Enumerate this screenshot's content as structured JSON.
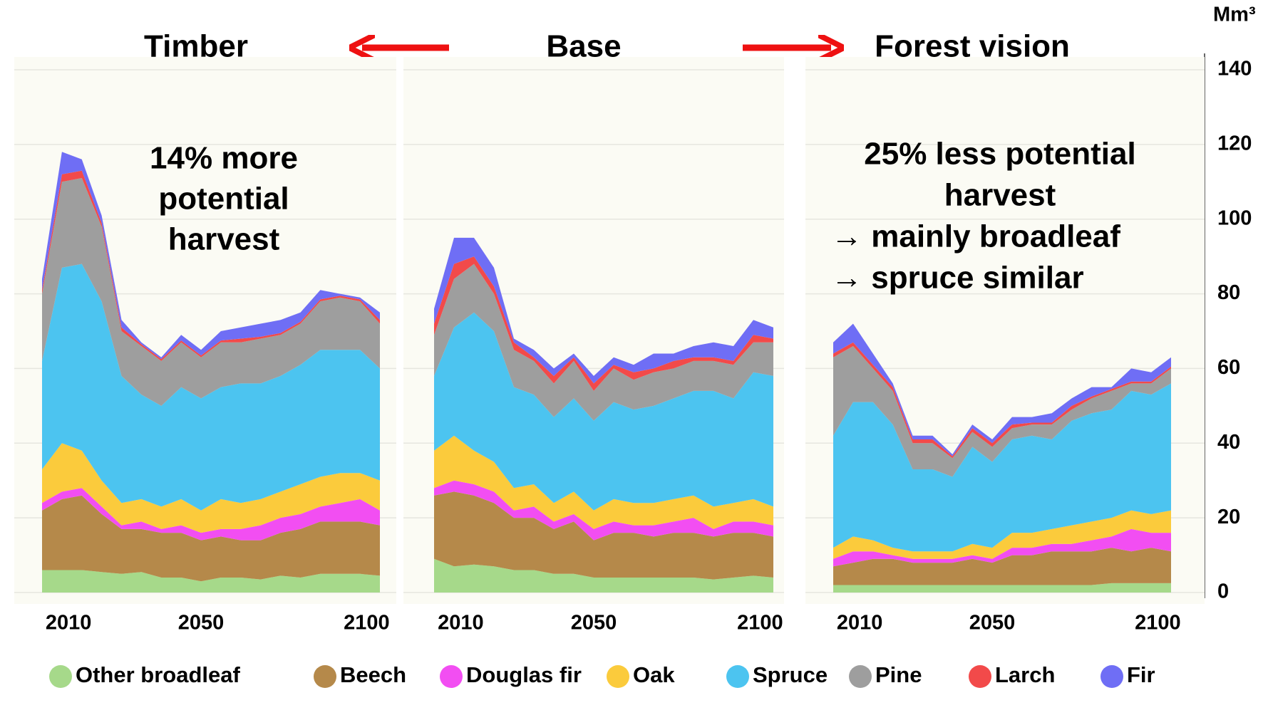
{
  "chart_data": [
    {
      "type": "stacked_area",
      "title": "Timber",
      "annotation": [
        "14% more",
        "potential",
        "harvest"
      ],
      "x": [
        2002,
        2008,
        2014,
        2020,
        2026,
        2032,
        2038,
        2044,
        2050,
        2056,
        2062,
        2068,
        2074,
        2080,
        2086,
        2092,
        2098,
        2104
      ],
      "xlim": [
        2002,
        2104
      ],
      "xticks": [
        2010,
        2050,
        2100
      ],
      "ylim": [
        0,
        140
      ],
      "yticks": [
        0,
        20,
        40,
        60,
        80,
        100,
        120,
        140
      ],
      "grid": true,
      "series": [
        {
          "name": "Other broadleaf",
          "color": "#a6d98a",
          "values": [
            6,
            6,
            6,
            5.5,
            5,
            5.5,
            4,
            4,
            3,
            4,
            4,
            3.5,
            4.5,
            4,
            5,
            5,
            5,
            4.5
          ]
        },
        {
          "name": "Beech",
          "color": "#b5894a",
          "values": [
            16,
            19,
            20,
            15.5,
            12,
            11.5,
            12,
            12,
            11,
            11,
            10,
            10.5,
            11.5,
            13,
            14,
            14,
            14,
            13.5
          ]
        },
        {
          "name": "Douglas fir",
          "color": "#f24ef2",
          "values": [
            2,
            2,
            2,
            2,
            1,
            2,
            1,
            2,
            2,
            2,
            3,
            4,
            4,
            4,
            4,
            5,
            6,
            4
          ]
        },
        {
          "name": "Oak",
          "color": "#fbcb3c",
          "values": [
            9,
            13,
            10,
            7,
            6,
            6,
            6,
            7,
            6,
            8,
            7,
            7,
            7,
            8,
            8,
            8,
            7,
            8
          ]
        },
        {
          "name": "Spruce",
          "color": "#4cc4f0",
          "values": [
            29,
            47,
            50,
            48,
            34,
            28,
            27,
            30,
            30,
            30,
            32,
            31,
            31,
            32,
            34,
            33,
            33,
            30
          ]
        },
        {
          "name": "Pine",
          "color": "#9e9e9e",
          "values": [
            18,
            23,
            23,
            20,
            12,
            13,
            12,
            12,
            11,
            12,
            11,
            12,
            11,
            11,
            13,
            14,
            13,
            12
          ]
        },
        {
          "name": "Larch",
          "color": "#f24a4a",
          "values": [
            1,
            2,
            2,
            1,
            1,
            0.5,
            0.5,
            0.5,
            0.5,
            0.5,
            1,
            0.5,
            0.5,
            0.5,
            0.5,
            0.5,
            0.5,
            1
          ]
        },
        {
          "name": "Fir",
          "color": "#6f6ef5",
          "values": [
            3,
            6,
            3,
            2,
            2,
            0.5,
            0.5,
            1.5,
            1.5,
            2.5,
            3,
            3.5,
            3.5,
            2.5,
            2.5,
            0.5,
            0.5,
            2
          ]
        }
      ]
    },
    {
      "type": "stacked_area",
      "title": "Base",
      "x": [
        2002,
        2008,
        2014,
        2020,
        2026,
        2032,
        2038,
        2044,
        2050,
        2056,
        2062,
        2068,
        2074,
        2080,
        2086,
        2092,
        2098,
        2104
      ],
      "xlim": [
        2002,
        2104
      ],
      "xticks": [
        2010,
        2050,
        2100
      ],
      "ylim": [
        0,
        140
      ],
      "yticks": [
        0,
        20,
        40,
        60,
        80,
        100,
        120,
        140
      ],
      "grid": true,
      "series": [
        {
          "name": "Other broadleaf",
          "color": "#a6d98a",
          "values": [
            9,
            7,
            7.5,
            7,
            6,
            6,
            5,
            5,
            4,
            4,
            4,
            4,
            4,
            4,
            3.5,
            4,
            4.5,
            4
          ]
        },
        {
          "name": "Beech",
          "color": "#b5894a",
          "values": [
            17,
            20,
            18.5,
            17,
            14,
            14,
            12,
            14,
            10,
            12,
            12,
            11,
            12,
            12,
            11.5,
            12,
            11.5,
            11
          ]
        },
        {
          "name": "Douglas fir",
          "color": "#f24ef2",
          "values": [
            2,
            3,
            3,
            3,
            2,
            3,
            2,
            2,
            3,
            3,
            2,
            3,
            3,
            4,
            2,
            3,
            3,
            3
          ]
        },
        {
          "name": "Oak",
          "color": "#fbcb3c",
          "values": [
            10,
            12,
            9,
            8,
            6,
            6,
            5,
            6,
            5,
            6,
            6,
            6,
            6,
            6,
            6,
            5,
            6,
            5
          ]
        },
        {
          "name": "Spruce",
          "color": "#4cc4f0",
          "values": [
            20,
            29,
            37,
            35,
            27,
            24,
            23,
            25,
            24,
            26,
            25,
            26,
            27,
            28,
            31,
            28,
            34,
            35
          ]
        },
        {
          "name": "Pine",
          "color": "#9e9e9e",
          "values": [
            11,
            13,
            13,
            10,
            10,
            9,
            9,
            10,
            8,
            9,
            8,
            9,
            8,
            8,
            8,
            9,
            8,
            9
          ]
        },
        {
          "name": "Larch",
          "color": "#f24a4a",
          "values": [
            3,
            4,
            2,
            2,
            2,
            1,
            2,
            1,
            2,
            1,
            2,
            1,
            2,
            1,
            1,
            1,
            2,
            1
          ]
        },
        {
          "name": "Fir",
          "color": "#6f6ef5",
          "values": [
            4,
            7,
            5,
            5,
            1,
            2,
            2,
            1,
            2,
            2,
            2,
            4,
            2,
            3,
            4,
            4,
            4,
            3
          ]
        }
      ]
    },
    {
      "type": "stacked_area",
      "title": "Forest vision",
      "y_label": "Mm³",
      "annotation": [
        "25% less potential",
        "harvest",
        "→ mainly broadleaf",
        "→ spruce similar"
      ],
      "x": [
        2002,
        2008,
        2014,
        2020,
        2026,
        2032,
        2038,
        2044,
        2050,
        2056,
        2062,
        2068,
        2074,
        2080,
        2086,
        2092,
        2098,
        2104
      ],
      "xlim": [
        2002,
        2104
      ],
      "xticks": [
        2010,
        2050,
        2100
      ],
      "ylim": [
        0,
        140
      ],
      "yticks": [
        0,
        20,
        40,
        60,
        80,
        100,
        120,
        140
      ],
      "grid": true,
      "series": [
        {
          "name": "Other broadleaf",
          "color": "#a6d98a",
          "values": [
            2,
            2,
            2,
            2,
            2,
            2,
            2,
            2,
            2,
            2,
            2,
            2,
            2,
            2,
            2.5,
            2.5,
            2.5,
            2.5
          ]
        },
        {
          "name": "Beech",
          "color": "#b5894a",
          "values": [
            5,
            6,
            7,
            7,
            6,
            6,
            6,
            7,
            6,
            8,
            8,
            9,
            9,
            9,
            9.5,
            8.5,
            9.5,
            8.5
          ]
        },
        {
          "name": "Douglas fir",
          "color": "#f24ef2",
          "values": [
            2,
            3,
            2,
            1,
            1,
            1,
            1,
            1,
            1,
            2,
            2,
            2,
            2,
            3,
            3,
            6,
            4,
            5
          ]
        },
        {
          "name": "Oak",
          "color": "#fbcb3c",
          "values": [
            3,
            4,
            3,
            2,
            2,
            2,
            2,
            3,
            3,
            4,
            4,
            4,
            5,
            5,
            5,
            5,
            5,
            6
          ]
        },
        {
          "name": "Spruce",
          "color": "#4cc4f0",
          "values": [
            30,
            36,
            37,
            33,
            22,
            22,
            20,
            26,
            23,
            25,
            26,
            24,
            28,
            29,
            29,
            32,
            32,
            34
          ]
        },
        {
          "name": "Pine",
          "color": "#9e9e9e",
          "values": [
            21,
            15,
            9,
            9,
            7,
            7,
            5,
            4,
            4,
            3,
            3,
            4,
            3,
            4,
            5,
            2,
            3,
            4
          ]
        },
        {
          "name": "Larch",
          "color": "#f24a4a",
          "values": [
            1,
            1,
            1,
            1,
            1,
            1,
            0.5,
            1,
            1,
            1,
            0.5,
            0.5,
            1,
            0.5,
            0.5,
            0.5,
            0.5,
            0.5
          ]
        },
        {
          "name": "Fir",
          "color": "#6f6ef5",
          "values": [
            3,
            5,
            3,
            1,
            1,
            1,
            0.5,
            1,
            1,
            2,
            1.5,
            2.5,
            2,
            2.5,
            0.5,
            3.5,
            2.5,
            2.5
          ]
        }
      ]
    }
  ]
}
